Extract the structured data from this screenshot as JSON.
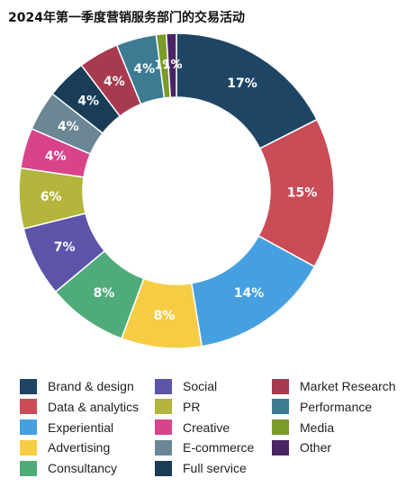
{
  "chart_data": {
    "type": "pie",
    "title": "2024年第一季度营销服务部门的交易活动",
    "categories": [
      "Brand & design",
      "Data & analytics",
      "Experiential",
      "Advertising",
      "Consultancy",
      "Social",
      "PR",
      "Creative",
      "E-commerce",
      "Full service",
      "Market Research",
      "Performance",
      "Media",
      "Other"
    ],
    "values": [
      17,
      15,
      14,
      8,
      8,
      7,
      6,
      4,
      4,
      4,
      4,
      4,
      1,
      1
    ],
    "data_labels": [
      "17%",
      "15%",
      "14%",
      "8%",
      "8%",
      "7%",
      "6%",
      "4%",
      "4%",
      "4%",
      "4%",
      "4%",
      "1%",
      "1%"
    ],
    "colors": [
      "#1f4565",
      "#c94c57",
      "#46a0e0",
      "#f6cc45",
      "#4fac7a",
      "#5b54a8",
      "#b3b53c",
      "#d9438a",
      "#6b8694",
      "#193c57",
      "#a83a4f",
      "#3b7c93",
      "#7a9a2a",
      "#4a2465"
    ],
    "legend_position": "bottom"
  }
}
